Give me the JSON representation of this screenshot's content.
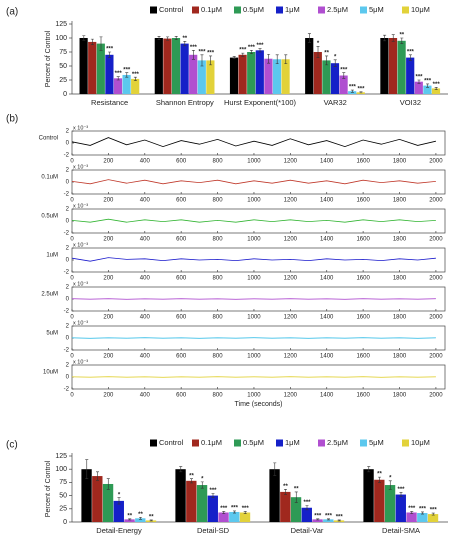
{
  "chart_data": [
    {
      "type": "bar",
      "panel": "(a)",
      "ylabel": "Percent of Control",
      "ylim": [
        0,
        125
      ],
      "yticks": [
        0,
        25,
        50,
        75,
        100,
        125
      ],
      "categories": [
        "Resistance",
        "Shannon Entropy",
        "Hurst Exponent(*100)",
        "VAR32",
        "VOI32"
      ],
      "series": [
        {
          "name": "Control",
          "color": "#000000",
          "values": [
            100,
            100,
            65,
            100,
            100
          ],
          "errors": [
            4,
            3,
            2,
            8,
            5
          ]
        },
        {
          "name": "0.1μM",
          "color": "#a0281e",
          "values": [
            93,
            99,
            70,
            75,
            100
          ],
          "errors": [
            5,
            3,
            3,
            10,
            6
          ],
          "stars": [
            null,
            null,
            "***",
            "*",
            null
          ]
        },
        {
          "name": "0.5μM",
          "color": "#2e9a55",
          "values": [
            90,
            100,
            75,
            60,
            95
          ],
          "errors": [
            12,
            3,
            3,
            8,
            5
          ],
          "stars": [
            null,
            null,
            "***",
            "**",
            "**"
          ]
        },
        {
          "name": "1μM",
          "color": "#1520c8",
          "values": [
            70,
            90,
            78,
            55,
            65
          ],
          "errors": [
            5,
            4,
            3,
            6,
            5
          ],
          "stars": [
            "***",
            "**",
            "***",
            "*",
            "***"
          ]
        },
        {
          "name": "2.5μM",
          "color": "#b04fd0",
          "values": [
            28,
            70,
            63,
            33,
            22
          ],
          "errors": [
            3,
            8,
            8,
            5,
            3
          ],
          "stars": [
            "***",
            "***",
            null,
            "***",
            "***"
          ]
        },
        {
          "name": "5μM",
          "color": "#5cc8ee",
          "values": [
            34,
            60,
            62,
            5,
            15
          ],
          "errors": [
            4,
            10,
            8,
            2,
            3
          ],
          "stars": [
            "***",
            "***",
            null,
            "***",
            "***"
          ]
        },
        {
          "name": "10μM",
          "color": "#e2d23a",
          "values": [
            27,
            60,
            62,
            3,
            10
          ],
          "errors": [
            3,
            8,
            8,
            1,
            2
          ],
          "stars": [
            "***",
            "***",
            null,
            "***",
            "***"
          ]
        }
      ]
    },
    {
      "type": "line",
      "panel": "(b)",
      "scale_label": "x 10⁻³",
      "xlim": [
        0,
        2050
      ],
      "xticks": [
        0,
        200,
        400,
        600,
        800,
        1000,
        1200,
        1400,
        1600,
        1800,
        2000
      ],
      "ylim": [
        -2,
        2
      ],
      "yticks": [
        -2,
        0,
        2
      ],
      "x": [
        0,
        100,
        200,
        300,
        400,
        500,
        600,
        700,
        800,
        900,
        1000,
        1100,
        1200,
        1300,
        1400,
        1500,
        1600,
        1700,
        1800,
        1900,
        2000
      ],
      "series": [
        {
          "name": "Control",
          "color": "#000000",
          "values": [
            0.2,
            -0.4,
            0.9,
            -0.3,
            0.5,
            -0.6,
            0.4,
            -0.2,
            0.6,
            -0.5,
            0.3,
            -0.4,
            0.7,
            -0.3,
            0.4,
            -0.6,
            0.5,
            -0.2,
            0.6,
            -0.4,
            0.3
          ]
        }
      ]
    },
    {
      "type": "line",
      "scale_label": "x 10⁻³",
      "xlim": [
        0,
        2050
      ],
      "xticks": [
        0,
        200,
        400,
        600,
        800,
        1000,
        1200,
        1400,
        1600,
        1800,
        2000
      ],
      "ylim": [
        -2,
        2
      ],
      "yticks": [
        -2,
        0,
        2
      ],
      "x": [
        0,
        100,
        200,
        300,
        400,
        500,
        600,
        700,
        800,
        900,
        1000,
        1100,
        1200,
        1300,
        1400,
        1500,
        1600,
        1700,
        1800,
        1900,
        2000
      ],
      "series": [
        {
          "name": "0.1uM",
          "color": "#c0392b",
          "values": [
            0.1,
            -0.3,
            0.4,
            -0.2,
            0.3,
            -0.3,
            0.2,
            -0.1,
            0.3,
            -0.3,
            0.2,
            -0.2,
            0.3,
            -0.2,
            0.2,
            -0.3,
            0.3,
            -0.1,
            0.2,
            -0.2,
            0.1
          ]
        }
      ]
    },
    {
      "type": "line",
      "scale_label": "x 10⁻³",
      "xlim": [
        0,
        2050
      ],
      "xticks": [
        0,
        200,
        400,
        600,
        800,
        1000,
        1200,
        1400,
        1600,
        1800,
        2000
      ],
      "ylim": [
        -2,
        2
      ],
      "yticks": [
        -2,
        0,
        2
      ],
      "x": [
        0,
        100,
        200,
        300,
        400,
        500,
        600,
        700,
        800,
        900,
        1000,
        1100,
        1200,
        1300,
        1400,
        1500,
        1600,
        1700,
        1800,
        1900,
        2000
      ],
      "series": [
        {
          "name": "0.5uM",
          "color": "#33b533",
          "values": [
            0.1,
            -0.2,
            0.3,
            -0.2,
            0.2,
            -0.1,
            0.2,
            -0.2,
            0.1,
            -0.2,
            0.2,
            -0.1,
            0.2,
            -0.1,
            0.1,
            -0.2,
            0.2,
            -0.1,
            0.2,
            -0.1,
            0.1
          ]
        }
      ]
    },
    {
      "type": "line",
      "scale_label": "x 10⁻³",
      "xlim": [
        0,
        2050
      ],
      "xticks": [
        0,
        200,
        400,
        600,
        800,
        1000,
        1200,
        1400,
        1600,
        1800,
        2000
      ],
      "ylim": [
        -2,
        2
      ],
      "yticks": [
        -2,
        0,
        2
      ],
      "x": [
        0,
        100,
        200,
        300,
        400,
        500,
        600,
        700,
        800,
        900,
        1000,
        1100,
        1200,
        1300,
        1400,
        1500,
        1600,
        1700,
        1800,
        1900,
        2000
      ],
      "series": [
        {
          "name": "1uM",
          "color": "#1a1acc",
          "values": [
            0.3,
            -0.2,
            0.4,
            0.1,
            0.2,
            -0.1,
            0.2,
            0,
            0.1,
            -0.1,
            0.2,
            0,
            0.1,
            -0.1,
            0.2,
            0,
            0.1,
            -0.1,
            0.2,
            0,
            0.3
          ]
        }
      ]
    },
    {
      "type": "line",
      "scale_label": "x 10⁻³",
      "xlim": [
        0,
        2050
      ],
      "xticks": [
        0,
        200,
        400,
        600,
        800,
        1000,
        1200,
        1400,
        1600,
        1800,
        2000
      ],
      "ylim": [
        -2,
        2
      ],
      "yticks": [
        -2,
        0,
        2
      ],
      "x": [
        0,
        100,
        200,
        300,
        400,
        500,
        600,
        700,
        800,
        900,
        1000,
        1100,
        1200,
        1300,
        1400,
        1500,
        1600,
        1700,
        1800,
        1900,
        2000
      ],
      "series": [
        {
          "name": "2.5uM",
          "color": "#b04fd0",
          "values": [
            0.05,
            -0.04,
            0.05,
            -0.05,
            0.04,
            -0.04,
            0.05,
            -0.03,
            0.04,
            -0.05,
            0.03,
            -0.04,
            0.05,
            -0.04,
            0.04,
            -0.05,
            0.05,
            -0.03,
            0.04,
            -0.04,
            0.05
          ]
        }
      ]
    },
    {
      "type": "line",
      "scale_label": "x 10⁻³",
      "xlim": [
        0,
        2050
      ],
      "xticks": [
        0,
        200,
        400,
        600,
        800,
        1000,
        1200,
        1400,
        1600,
        1800,
        2000
      ],
      "ylim": [
        -2,
        2
      ],
      "yticks": [
        -2,
        0,
        2
      ],
      "x": [
        0,
        100,
        200,
        300,
        400,
        500,
        600,
        700,
        800,
        900,
        1000,
        1100,
        1200,
        1300,
        1400,
        1500,
        1600,
        1700,
        1800,
        1900,
        2000
      ],
      "series": [
        {
          "name": "5uM",
          "color": "#3cc0e8",
          "values": [
            0.04,
            -0.05,
            0.04,
            -0.04,
            0.05,
            -0.03,
            0.04,
            -0.05,
            0.04,
            -0.04,
            0.05,
            -0.04,
            0.03,
            -0.05,
            0.04,
            -0.04,
            0.05,
            -0.04,
            0.04,
            -0.05,
            0.04
          ]
        }
      ]
    },
    {
      "type": "line",
      "scale_label": "x 10⁻³",
      "xlabel": "Time (seconds)",
      "xlim": [
        0,
        2050
      ],
      "xticks": [
        0,
        200,
        400,
        600,
        800,
        1000,
        1200,
        1400,
        1600,
        1800,
        2000
      ],
      "ylim": [
        -2,
        2
      ],
      "yticks": [
        -2,
        0,
        2
      ],
      "x": [
        0,
        100,
        200,
        300,
        400,
        500,
        600,
        700,
        800,
        900,
        1000,
        1100,
        1200,
        1300,
        1400,
        1500,
        1600,
        1700,
        1800,
        1900,
        2000
      ],
      "series": [
        {
          "name": "10uM",
          "color": "#e2d23a",
          "values": [
            0.04,
            -0.04,
            0.05,
            -0.04,
            0.04,
            -0.05,
            0.04,
            -0.04,
            0.05,
            -0.03,
            0.04,
            -0.04,
            0.05,
            -0.04,
            0.04,
            -0.04,
            0.05,
            -0.05,
            0.04,
            -0.04,
            0.04
          ]
        }
      ]
    },
    {
      "type": "bar",
      "panel": "(c)",
      "ylabel": "Percent of Control",
      "ylim": [
        0,
        125
      ],
      "yticks": [
        0,
        25,
        50,
        75,
        100,
        125
      ],
      "categories": [
        "Detail-Energy",
        "Detail-SD",
        "Detail-Var",
        "Detail-SMA"
      ],
      "series": [
        {
          "name": "Control",
          "color": "#000000",
          "values": [
            100,
            100,
            100,
            100
          ],
          "errors": [
            18,
            5,
            12,
            5
          ]
        },
        {
          "name": "0.1μM",
          "color": "#a0281e",
          "values": [
            87,
            78,
            57,
            80
          ],
          "errors": [
            8,
            4,
            5,
            5
          ],
          "stars": [
            null,
            "**",
            "**",
            "**"
          ]
        },
        {
          "name": "0.5μM",
          "color": "#2e9a55",
          "values": [
            72,
            70,
            47,
            70
          ],
          "errors": [
            10,
            6,
            10,
            8
          ],
          "stars": [
            null,
            "*",
            "**",
            "*"
          ]
        },
        {
          "name": "1μM",
          "color": "#1520c8",
          "values": [
            40,
            50,
            27,
            52
          ],
          "errors": [
            6,
            4,
            4,
            4
          ],
          "stars": [
            "*",
            "***",
            "***",
            "***"
          ]
        },
        {
          "name": "2.5μM",
          "color": "#b04fd0",
          "values": [
            5,
            18,
            5,
            18
          ],
          "errors": [
            1,
            2,
            1,
            2
          ],
          "stars": [
            "**",
            "***",
            "***",
            "***"
          ]
        },
        {
          "name": "5μM",
          "color": "#5cc8ee",
          "values": [
            7,
            19,
            5,
            17
          ],
          "errors": [
            2,
            2,
            1,
            2
          ],
          "stars": [
            "**",
            "***",
            "***",
            "***"
          ]
        },
        {
          "name": "10μM",
          "color": "#e2d23a",
          "values": [
            3,
            18,
            3,
            15
          ],
          "errors": [
            1,
            2,
            1,
            2
          ],
          "stars": [
            "**",
            "***",
            "***",
            "***"
          ]
        }
      ]
    }
  ]
}
